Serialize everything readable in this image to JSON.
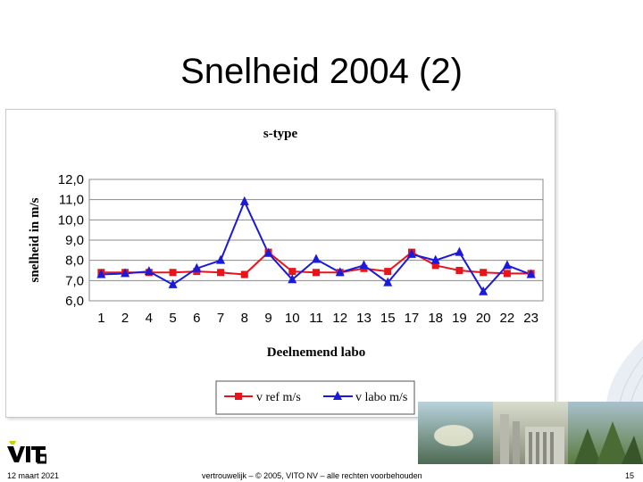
{
  "slide": {
    "title": "Snelheid 2004 (2)",
    "footer_date": "12 maart 2021",
    "footer_copyright": "vertrouwelijk – © 2005, VITO NV – alle rechten voorbehouden",
    "page_number": "15",
    "logo_text": "vito"
  },
  "chart_data": {
    "type": "line",
    "title": "s-type",
    "xlabel": "Deelnemend labo",
    "ylabel": "snelheid in m/s",
    "categories": [
      "1",
      "2",
      "4",
      "5",
      "6",
      "7",
      "8",
      "9",
      "10",
      "11",
      "12",
      "13",
      "15",
      "17",
      "18",
      "19",
      "20",
      "22",
      "23"
    ],
    "ylim": [
      6.0,
      12.0
    ],
    "yticks": [
      "6,0",
      "7,0",
      "8,0",
      "9,0",
      "10,0",
      "11,0",
      "12,0"
    ],
    "grid": true,
    "legend_position": "bottom",
    "series": [
      {
        "name": "v ref m/s",
        "color": "#e8141c",
        "marker": "square",
        "values": [
          7.4,
          7.4,
          7.4,
          7.4,
          7.45,
          7.4,
          7.3,
          8.4,
          7.45,
          7.4,
          7.4,
          7.6,
          7.45,
          8.4,
          7.75,
          7.5,
          7.4,
          7.35,
          7.35
        ]
      },
      {
        "name": "v labo m/s",
        "color": "#1a1ad8",
        "marker": "triangle",
        "values": [
          7.3,
          7.35,
          7.45,
          6.8,
          7.6,
          8.0,
          10.9,
          8.35,
          7.05,
          8.05,
          7.4,
          7.75,
          6.9,
          8.3,
          8.0,
          8.4,
          6.45,
          7.75,
          7.3
        ]
      }
    ]
  }
}
